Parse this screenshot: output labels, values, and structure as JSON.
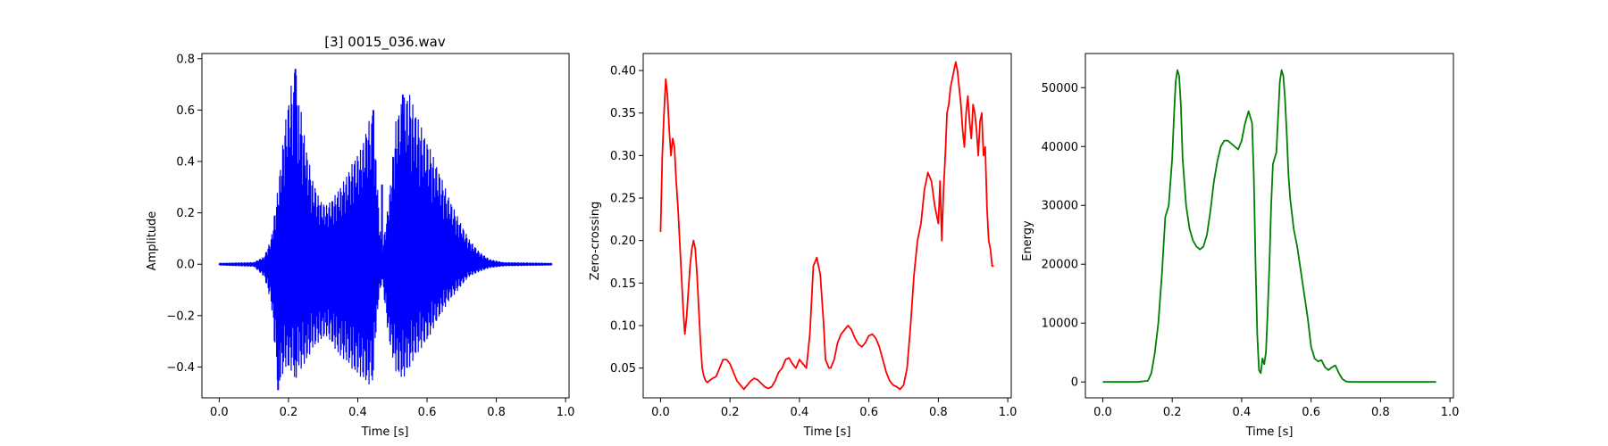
{
  "colors": {
    "waveform": "#0000ff",
    "zcr": "#ff0000",
    "energy": "#008000",
    "axis": "#000000",
    "background": "#ffffff"
  },
  "chart_data": [
    {
      "type": "line",
      "title": "[3] 0015_036.wav",
      "xlabel": "Time [s]",
      "ylabel": "Amplitude",
      "xlim": [
        -0.05,
        1.01
      ],
      "ylim": [
        -0.52,
        0.82
      ],
      "xticks": [
        0.0,
        0.2,
        0.4,
        0.6,
        0.8,
        1.0
      ],
      "xtick_labels": [
        "0.0",
        "0.2",
        "0.4",
        "0.6",
        "0.8",
        "1.0"
      ],
      "yticks": [
        -0.4,
        -0.2,
        0.0,
        0.2,
        0.4,
        0.6,
        0.8
      ],
      "ytick_labels": [
        "−0.4",
        "−0.2",
        "0.0",
        "0.2",
        "0.4",
        "0.6",
        "0.8"
      ],
      "grid": false,
      "series": [
        {
          "style": "waveform",
          "color": "#0000ff",
          "envelope": {
            "x": [
              0.0,
              0.1,
              0.13,
              0.15,
              0.17,
              0.19,
              0.21,
              0.22,
              0.23,
              0.25,
              0.27,
              0.29,
              0.31,
              0.33,
              0.35,
              0.37,
              0.39,
              0.41,
              0.43,
              0.445,
              0.455,
              0.47,
              0.49,
              0.51,
              0.53,
              0.55,
              0.57,
              0.6,
              0.63,
              0.66,
              0.69,
              0.72,
              0.75,
              0.78,
              0.82,
              0.96
            ],
            "upper": [
              0.005,
              0.008,
              0.03,
              0.1,
              0.3,
              0.55,
              0.72,
              0.76,
              0.66,
              0.46,
              0.33,
              0.25,
              0.23,
              0.26,
              0.3,
              0.35,
              0.41,
              0.45,
              0.55,
              0.6,
              0.34,
              0.05,
              0.25,
              0.56,
              0.65,
              0.66,
              0.58,
              0.48,
              0.38,
              0.27,
              0.18,
              0.1,
              0.05,
              0.02,
              0.008,
              0.005
            ],
            "lower": [
              -0.005,
              -0.01,
              -0.05,
              -0.15,
              -0.49,
              -0.4,
              -0.42,
              -0.45,
              -0.42,
              -0.38,
              -0.33,
              -0.3,
              -0.28,
              -0.32,
              -0.36,
              -0.38,
              -0.42,
              -0.44,
              -0.47,
              -0.46,
              -0.2,
              -0.06,
              -0.3,
              -0.42,
              -0.45,
              -0.4,
              -0.35,
              -0.3,
              -0.22,
              -0.15,
              -0.1,
              -0.05,
              -0.03,
              -0.015,
              -0.008,
              -0.005
            ]
          },
          "spikes": [
            {
              "x": 0.17,
              "y": -0.49
            },
            {
              "x": 0.22,
              "y": 0.76
            },
            {
              "x": 0.445,
              "y": 0.6
            },
            {
              "x": 0.53,
              "y": 0.66
            },
            {
              "x": 0.47,
              "y": 0.31
            }
          ]
        }
      ]
    },
    {
      "type": "line",
      "xlabel": "Time [s]",
      "ylabel": "Zero-crossing",
      "xlim": [
        -0.05,
        1.01
      ],
      "ylim": [
        0.015,
        0.42
      ],
      "xticks": [
        0.0,
        0.2,
        0.4,
        0.6,
        0.8,
        1.0
      ],
      "xtick_labels": [
        "0.0",
        "0.2",
        "0.4",
        "0.6",
        "0.8",
        "1.0"
      ],
      "yticks": [
        0.05,
        0.1,
        0.15,
        0.2,
        0.25,
        0.3,
        0.35,
        0.4
      ],
      "ytick_labels": [
        "0.05",
        "0.10",
        "0.15",
        "0.20",
        "0.25",
        "0.30",
        "0.35",
        "0.40"
      ],
      "grid": false,
      "series": [
        {
          "color": "#ff0000",
          "x": [
            0.0,
            0.005,
            0.01,
            0.015,
            0.02,
            0.025,
            0.03,
            0.035,
            0.04,
            0.045,
            0.05,
            0.055,
            0.06,
            0.065,
            0.07,
            0.075,
            0.08,
            0.085,
            0.09,
            0.095,
            0.1,
            0.105,
            0.11,
            0.115,
            0.12,
            0.125,
            0.13,
            0.135,
            0.14,
            0.15,
            0.16,
            0.17,
            0.18,
            0.19,
            0.2,
            0.21,
            0.22,
            0.23,
            0.24,
            0.25,
            0.26,
            0.27,
            0.28,
            0.29,
            0.3,
            0.31,
            0.32,
            0.33,
            0.34,
            0.35,
            0.36,
            0.37,
            0.38,
            0.39,
            0.4,
            0.41,
            0.42,
            0.43,
            0.44,
            0.45,
            0.46,
            0.47,
            0.475,
            0.48,
            0.485,
            0.49,
            0.495,
            0.5,
            0.505,
            0.51,
            0.52,
            0.53,
            0.54,
            0.55,
            0.56,
            0.57,
            0.58,
            0.59,
            0.6,
            0.61,
            0.62,
            0.63,
            0.64,
            0.65,
            0.66,
            0.67,
            0.68,
            0.69,
            0.7,
            0.71,
            0.72,
            0.73,
            0.74,
            0.75,
            0.76,
            0.77,
            0.78,
            0.79,
            0.8,
            0.805,
            0.81,
            0.815,
            0.82,
            0.825,
            0.83,
            0.835,
            0.84,
            0.845,
            0.85,
            0.855,
            0.86,
            0.865,
            0.87,
            0.875,
            0.88,
            0.885,
            0.89,
            0.895,
            0.9,
            0.905,
            0.91,
            0.915,
            0.92,
            0.925,
            0.93,
            0.935,
            0.94,
            0.945,
            0.95,
            0.955,
            0.96
          ],
          "y": [
            0.21,
            0.3,
            0.35,
            0.39,
            0.37,
            0.33,
            0.3,
            0.32,
            0.31,
            0.27,
            0.24,
            0.2,
            0.16,
            0.12,
            0.09,
            0.11,
            0.14,
            0.17,
            0.19,
            0.2,
            0.19,
            0.16,
            0.12,
            0.08,
            0.05,
            0.04,
            0.035,
            0.033,
            0.035,
            0.038,
            0.04,
            0.05,
            0.06,
            0.06,
            0.055,
            0.045,
            0.035,
            0.03,
            0.025,
            0.03,
            0.035,
            0.038,
            0.036,
            0.032,
            0.028,
            0.026,
            0.028,
            0.035,
            0.045,
            0.05,
            0.06,
            0.062,
            0.055,
            0.05,
            0.06,
            0.055,
            0.05,
            0.09,
            0.17,
            0.18,
            0.16,
            0.1,
            0.06,
            0.055,
            0.05,
            0.05,
            0.055,
            0.06,
            0.07,
            0.08,
            0.09,
            0.095,
            0.1,
            0.095,
            0.085,
            0.078,
            0.075,
            0.08,
            0.088,
            0.09,
            0.085,
            0.075,
            0.06,
            0.045,
            0.035,
            0.03,
            0.028,
            0.025,
            0.03,
            0.05,
            0.1,
            0.16,
            0.2,
            0.22,
            0.26,
            0.28,
            0.27,
            0.24,
            0.22,
            0.27,
            0.2,
            0.26,
            0.3,
            0.35,
            0.36,
            0.38,
            0.39,
            0.4,
            0.41,
            0.4,
            0.38,
            0.36,
            0.33,
            0.31,
            0.35,
            0.37,
            0.34,
            0.32,
            0.36,
            0.35,
            0.33,
            0.3,
            0.34,
            0.35,
            0.3,
            0.31,
            0.24,
            0.2,
            0.19,
            0.17,
            0.17
          ]
        }
      ]
    },
    {
      "type": "line",
      "xlabel": "Time [s]",
      "ylabel": "Energy",
      "xlim": [
        -0.05,
        1.01
      ],
      "ylim": [
        -2700,
        55800
      ],
      "xticks": [
        0.0,
        0.2,
        0.4,
        0.6,
        0.8,
        1.0
      ],
      "xtick_labels": [
        "0.0",
        "0.2",
        "0.4",
        "0.6",
        "0.8",
        "1.0"
      ],
      "yticks": [
        0,
        10000,
        20000,
        30000,
        40000,
        50000
      ],
      "ytick_labels": [
        "0",
        "10000",
        "20000",
        "30000",
        "40000",
        "50000"
      ],
      "grid": false,
      "series": [
        {
          "color": "#008000",
          "x": [
            0.0,
            0.05,
            0.1,
            0.13,
            0.14,
            0.15,
            0.16,
            0.17,
            0.18,
            0.19,
            0.2,
            0.205,
            0.21,
            0.215,
            0.22,
            0.225,
            0.23,
            0.24,
            0.25,
            0.26,
            0.27,
            0.28,
            0.29,
            0.3,
            0.31,
            0.32,
            0.33,
            0.34,
            0.35,
            0.36,
            0.37,
            0.38,
            0.39,
            0.4,
            0.41,
            0.42,
            0.43,
            0.435,
            0.44,
            0.445,
            0.45,
            0.455,
            0.46,
            0.465,
            0.47,
            0.475,
            0.48,
            0.485,
            0.49,
            0.5,
            0.505,
            0.51,
            0.515,
            0.52,
            0.525,
            0.53,
            0.535,
            0.54,
            0.55,
            0.56,
            0.57,
            0.58,
            0.59,
            0.6,
            0.61,
            0.62,
            0.63,
            0.64,
            0.65,
            0.66,
            0.67,
            0.68,
            0.69,
            0.7,
            0.71,
            0.72,
            0.73,
            0.74,
            0.75,
            0.76,
            0.8,
            0.9,
            0.96
          ],
          "y": [
            0,
            0,
            0,
            200,
            1500,
            5000,
            10000,
            18000,
            28000,
            30000,
            38000,
            45000,
            51000,
            53000,
            52000,
            47000,
            38000,
            30000,
            26000,
            24000,
            23000,
            22500,
            23000,
            25000,
            29000,
            34000,
            37500,
            40000,
            41000,
            41000,
            40500,
            40000,
            39500,
            41000,
            44000,
            46000,
            44000,
            35000,
            20000,
            8000,
            2000,
            1500,
            4000,
            3000,
            5000,
            12000,
            20000,
            30000,
            37000,
            39000,
            45000,
            51000,
            53000,
            52000,
            48000,
            42000,
            35000,
            31000,
            26000,
            23000,
            19000,
            15000,
            11000,
            6000,
            4000,
            3500,
            3700,
            2500,
            2000,
            2500,
            2800,
            1500,
            500,
            100,
            0,
            0,
            0,
            0,
            0,
            0,
            0,
            0,
            0
          ]
        }
      ]
    }
  ]
}
